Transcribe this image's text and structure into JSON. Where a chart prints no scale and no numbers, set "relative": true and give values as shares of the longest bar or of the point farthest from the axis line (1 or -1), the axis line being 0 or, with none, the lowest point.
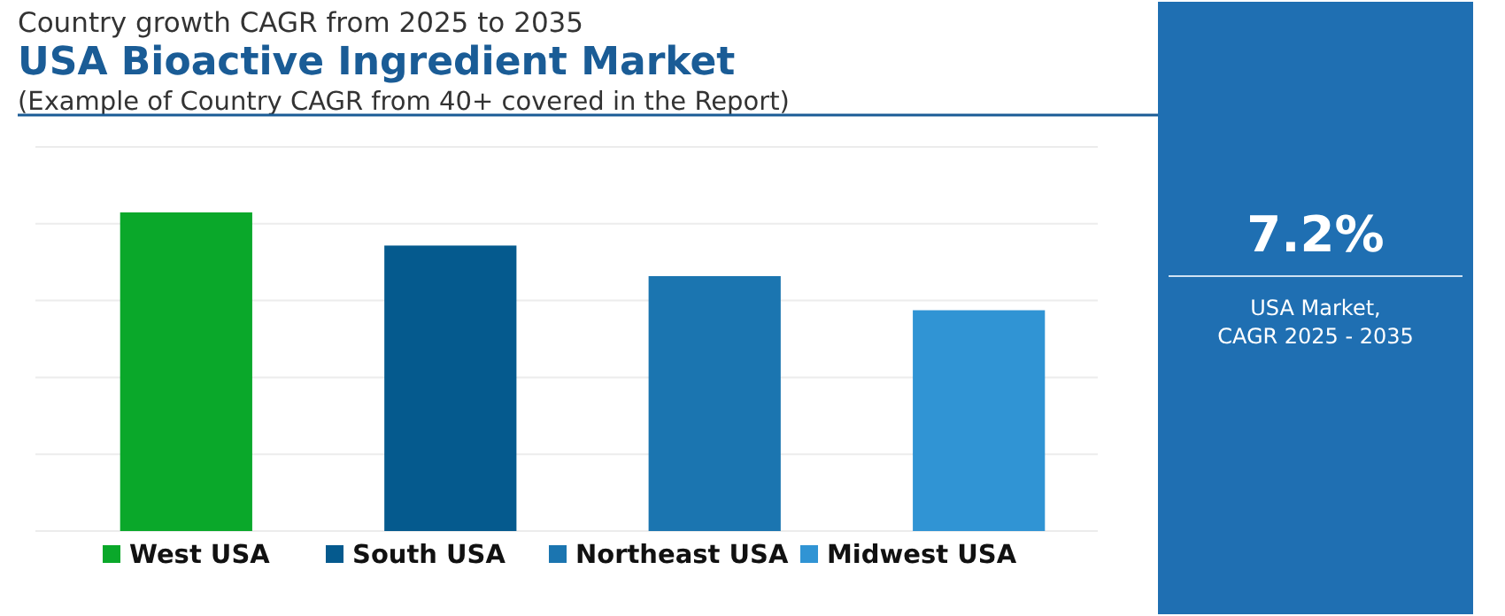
{
  "chart_data": {
    "type": "bar",
    "title": "USA Bioactive Ingredient Market",
    "subtitle": "(Example of Country CAGR from 40+ covered in the Report)",
    "categories": [
      "West USA",
      "South USA",
      "Northeast USA",
      "Midwest USA"
    ],
    "values": [
      1,
      0.896,
      0.8,
      0.693
    ],
    "colors": [
      "#0aa82a",
      "#055a8e",
      "#1b75b0",
      "#3094d4"
    ],
    "relative": true,
    "grid": true,
    "annotations": [
      "Country growth CAGR from 2025 to 2035",
      "7.2%",
      "USA Market,\nCAGR 2025 - 2035"
    ]
  }
}
